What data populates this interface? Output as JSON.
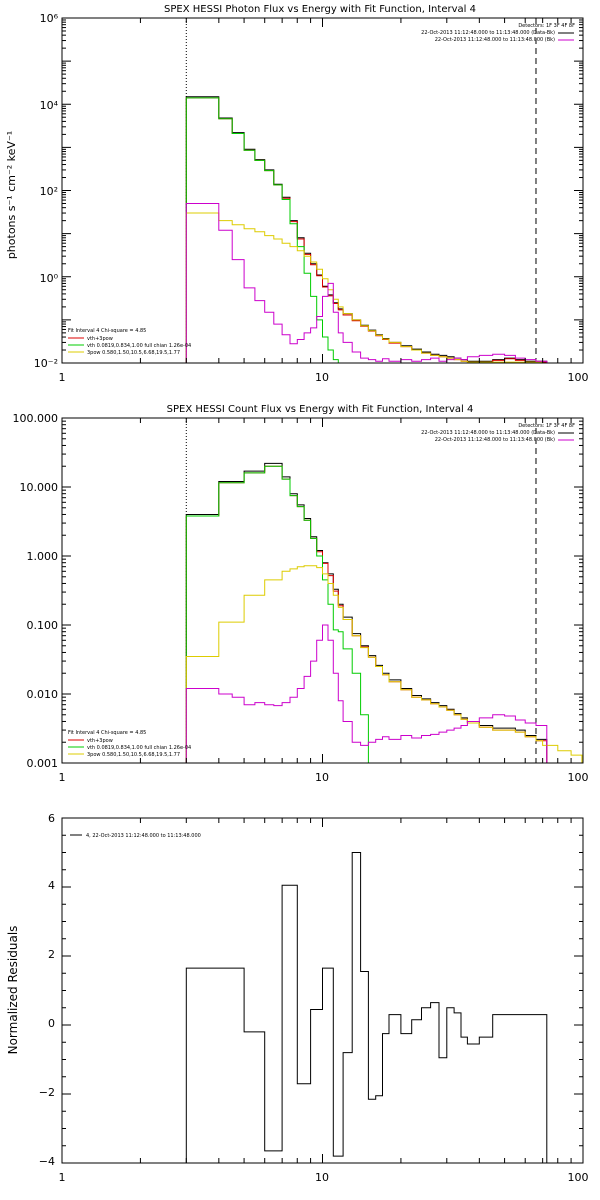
{
  "chart_data": [
    {
      "type": "line",
      "title": "SPEX HESSI Photon Flux vs Energy with Fit Function, Interval 4",
      "ylabel": "photons s⁻¹ cm⁻² keV⁻¹",
      "xlabel": "",
      "xscale": "log",
      "yscale": "log",
      "xlim": [
        1,
        100
      ],
      "ylim": [
        0.01,
        1000000
      ],
      "xticks": [
        1,
        10,
        100
      ],
      "xtick_labels": [
        "1",
        "10",
        "100"
      ],
      "yticks": [
        0.01,
        1,
        100,
        10000,
        1000000
      ],
      "ytick_labels": [
        "10⁻²",
        "10⁰",
        "10²",
        "10⁴",
        "10⁶"
      ],
      "vlines": [
        {
          "x": 3.0,
          "style": "dotted"
        },
        {
          "x": 66.0,
          "style": "dashed"
        }
      ],
      "legend_header": "Detectors: 1F 3F 4F 8F",
      "legend": [
        {
          "label": "22-Oct-2013 11:12:48.000 to 11:13:48.000 (Data-Bk)",
          "color": "#000000"
        },
        {
          "label": "22-Oct-2013 11:12:48.000 to 11:13:48.000 (Bk)",
          "color": "#cc00cc"
        }
      ],
      "fit_info": [
        {
          "label": "Fit Interval 4    Chi-square = 4.85",
          "color": "#000000"
        },
        {
          "label": "vth+3pow",
          "color": "#dd0000"
        },
        {
          "label": "vth 0.0819,0.834,1.00  full chian 1.26e-04",
          "color": "#00cc00"
        },
        {
          "label": "3pow 0.580,1.50,10.5,6.68,19.5,1.77",
          "color": "#ddcc00"
        }
      ],
      "series": [
        {
          "color": "#000000",
          "x": [
            3,
            3.5,
            4,
            4.5,
            5,
            5.5,
            6,
            6.5,
            7,
            7.5,
            8,
            8.5,
            9,
            9.5,
            10,
            10.5,
            11,
            11.5,
            12,
            13,
            14,
            15,
            16,
            17,
            18,
            20,
            22,
            24,
            26,
            28,
            30,
            32,
            34,
            36,
            40,
            45,
            50,
            55,
            60,
            66
          ],
          "y": [
            15000,
            15000,
            4800,
            2200,
            900,
            520,
            300,
            140,
            70,
            20,
            8,
            3.5,
            2,
            1.1,
            0.6,
            0.38,
            0.25,
            0.18,
            0.14,
            0.1,
            0.075,
            0.058,
            0.045,
            0.037,
            0.03,
            0.025,
            0.021,
            0.018,
            0.016,
            0.015,
            0.014,
            0.013,
            0.012,
            0.011,
            0.011,
            0.012,
            0.013,
            0.012,
            0.011,
            0.011
          ]
        },
        {
          "color": "#dd0000",
          "x": [
            3,
            3.5,
            4,
            4.5,
            5,
            5.5,
            6,
            6.5,
            7,
            7.5,
            8,
            8.5,
            9,
            9.5,
            10,
            10.5,
            11,
            11.5,
            12,
            13,
            14,
            15,
            16,
            17,
            18,
            20,
            22,
            24,
            26,
            28,
            30,
            32,
            34,
            36,
            40,
            45,
            50,
            55,
            60,
            66
          ],
          "y": [
            14000,
            14000,
            4600,
            2100,
            860,
            500,
            290,
            135,
            66,
            19,
            7.5,
            3.3,
            1.9,
            1.05,
            0.58,
            0.36,
            0.24,
            0.17,
            0.13,
            0.095,
            0.071,
            0.055,
            0.043,
            0.035,
            0.029,
            0.024,
            0.02,
            0.017,
            0.015,
            0.014,
            0.013,
            0.012,
            0.011,
            0.0105,
            0.0105,
            0.0115,
            0.0125,
            0.0115,
            0.0105,
            0.0105
          ]
        },
        {
          "color": "#00cc00",
          "x": [
            3,
            3.5,
            4,
            4.5,
            5,
            5.5,
            6,
            6.5,
            7,
            7.5,
            8,
            8.5,
            9,
            9.5,
            10,
            10.5,
            11,
            11.5,
            12,
            13,
            14,
            15,
            16
          ],
          "y": [
            14000,
            14000,
            4600,
            2100,
            860,
            500,
            290,
            135,
            62,
            17,
            5,
            1.2,
            0.35,
            0.1,
            0.04,
            0.02,
            0.012,
            0.01,
            0.01,
            0.01,
            0.01,
            0.01,
            0.01
          ]
        },
        {
          "color": "#ddcc00",
          "x": [
            3,
            3.5,
            4,
            4.5,
            5,
            5.5,
            6,
            6.5,
            7,
            7.5,
            8,
            8.5,
            9,
            9.5,
            10,
            10.5,
            11,
            11.5,
            12,
            13,
            14,
            15,
            16,
            17,
            18,
            20,
            22,
            24,
            26,
            28,
            30,
            32,
            34,
            36,
            40,
            45,
            50,
            55,
            60,
            66,
            70,
            80
          ],
          "y": [
            30,
            30,
            20,
            16,
            13,
            11,
            9,
            7.5,
            6,
            5,
            4,
            3,
            2.2,
            1.5,
            0.9,
            0.5,
            0.3,
            0.2,
            0.14,
            0.1,
            0.073,
            0.056,
            0.044,
            0.036,
            0.03,
            0.024,
            0.02,
            0.017,
            0.015,
            0.014,
            0.013,
            0.012,
            0.011,
            0.0105,
            0.0105,
            0.0105,
            0.0105,
            0.0105,
            0.0105,
            0.0105,
            0.01,
            0.01
          ]
        },
        {
          "color": "#cc00cc",
          "x": [
            3,
            3.5,
            4,
            4.5,
            5,
            5.5,
            6,
            6.5,
            7,
            7.5,
            8,
            8.5,
            9,
            9.5,
            10,
            10.5,
            11,
            11.5,
            12,
            13,
            14,
            15,
            16,
            17,
            18,
            20,
            22,
            24,
            26,
            28,
            30,
            32,
            34,
            36,
            40,
            45,
            50,
            55,
            60,
            66
          ],
          "y": [
            50,
            50,
            12,
            2.5,
            0.55,
            0.28,
            0.15,
            0.08,
            0.045,
            0.028,
            0.035,
            0.05,
            0.065,
            0.12,
            0.35,
            0.7,
            0.15,
            0.05,
            0.03,
            0.018,
            0.013,
            0.012,
            0.011,
            0.0125,
            0.011,
            0.012,
            0.011,
            0.012,
            0.013,
            0.011,
            0.012,
            0.013,
            0.012,
            0.014,
            0.015,
            0.016,
            0.015,
            0.013,
            0.012,
            0.011
          ]
        }
      ]
    },
    {
      "type": "line",
      "title": "SPEX HESSI Count Flux vs Energy with Fit Function, Interval 4",
      "xlabel": "",
      "ylabel": "",
      "xscale": "log",
      "yscale": "log",
      "xlim": [
        1,
        100
      ],
      "ylim": [
        0.001,
        100
      ],
      "xticks": [
        1,
        10,
        100
      ],
      "xtick_labels": [
        "1",
        "10",
        "100"
      ],
      "yticks": [
        0.001,
        0.01,
        0.1,
        1,
        10,
        100
      ],
      "ytick_labels": [
        "0.001",
        "0.010",
        "0.100",
        "1.000",
        "10.000",
        "100.000"
      ],
      "vlines": [
        {
          "x": 3.0,
          "style": "dotted"
        },
        {
          "x": 66.0,
          "style": "dashed"
        }
      ],
      "legend_header": "Detectors: 1F 3F 4F 8F",
      "legend": [
        {
          "label": "22-Oct-2013 11:12:48.000 to 11:13:48.000 (Data-Bk)",
          "color": "#000000"
        },
        {
          "label": "22-Oct-2013 11:12:48.000 to 11:13:48.000 (Bk)",
          "color": "#cc00cc"
        }
      ],
      "fit_info": [
        {
          "label": "Fit Interval 4    Chi-square = 4.85",
          "color": "#000000"
        },
        {
          "label": "vth+3pow",
          "color": "#dd0000"
        },
        {
          "label": "vth 0.0819,0.834,1.00  full chian 1.26e-04",
          "color": "#00cc00"
        },
        {
          "label": "3pow 0.580,1.50,10.5,6.68,19.5,1.77",
          "color": "#ddcc00"
        }
      ],
      "series": [
        {
          "color": "#000000",
          "x": [
            3,
            3.5,
            4,
            4.5,
            5,
            5.5,
            6,
            6.5,
            7,
            7.5,
            8,
            8.5,
            9,
            9.5,
            10,
            10.5,
            11,
            11.5,
            12,
            13,
            14,
            15,
            16,
            17,
            18,
            20,
            22,
            24,
            26,
            28,
            30,
            32,
            34,
            36,
            40,
            45,
            50,
            55,
            60,
            66
          ],
          "y": [
            4,
            4,
            12,
            12,
            17,
            17,
            22,
            22,
            14,
            8,
            5.5,
            3.5,
            1.9,
            1.2,
            0.8,
            0.55,
            0.33,
            0.2,
            0.13,
            0.075,
            0.05,
            0.036,
            0.026,
            0.02,
            0.016,
            0.012,
            0.0095,
            0.0085,
            0.0075,
            0.0068,
            0.006,
            0.0052,
            0.0045,
            0.004,
            0.0035,
            0.0032,
            0.0032,
            0.003,
            0.0025,
            0.0022
          ]
        },
        {
          "color": "#dd0000",
          "x": [
            3,
            3.5,
            4,
            4.5,
            5,
            5.5,
            6,
            6.5,
            7,
            7.5,
            8,
            8.5,
            9,
            9.5,
            10,
            10.5,
            11,
            11.5,
            12,
            13,
            14,
            15,
            16,
            17,
            18,
            20,
            22,
            24,
            26,
            28,
            30,
            32,
            34,
            36,
            40,
            45,
            50,
            55,
            60,
            66
          ],
          "y": [
            3.8,
            3.8,
            11.5,
            11.5,
            16,
            16,
            20,
            20,
            13,
            7.5,
            5.2,
            3.3,
            1.8,
            1.15,
            0.78,
            0.52,
            0.31,
            0.19,
            0.12,
            0.07,
            0.048,
            0.034,
            0.025,
            0.019,
            0.015,
            0.0115,
            0.009,
            0.0082,
            0.0072,
            0.0065,
            0.0058,
            0.005,
            0.0043,
            0.0038,
            0.0033,
            0.003,
            0.003,
            0.0028,
            0.0024,
            0.0021
          ]
        },
        {
          "color": "#00cc00",
          "x": [
            3,
            3.5,
            4,
            4.5,
            5,
            5.5,
            6,
            6.5,
            7,
            7.5,
            8,
            8.5,
            9,
            9.5,
            10,
            10.5,
            11,
            11.5,
            12,
            13,
            14,
            15
          ],
          "y": [
            3.8,
            3.8,
            11.5,
            11.5,
            16,
            16,
            20,
            20,
            13,
            7.5,
            5.2,
            3.3,
            1.8,
            1.0,
            0.45,
            0.2,
            0.085,
            0.08,
            0.045,
            0.02,
            0.005,
            0.001
          ]
        },
        {
          "color": "#ddcc00",
          "x": [
            3,
            3.5,
            4,
            4.5,
            5,
            5.5,
            6,
            6.5,
            7,
            7.5,
            8,
            8.5,
            9,
            9.5,
            10,
            10.5,
            11,
            11.5,
            12,
            13,
            14,
            15,
            16,
            17,
            18,
            20,
            22,
            24,
            26,
            28,
            30,
            32,
            34,
            36,
            40,
            45,
            50,
            55,
            60,
            66,
            70,
            80,
            90
          ],
          "y": [
            0.035,
            0.035,
            0.11,
            0.11,
            0.27,
            0.27,
            0.45,
            0.45,
            0.6,
            0.65,
            0.7,
            0.72,
            0.72,
            0.68,
            0.55,
            0.4,
            0.27,
            0.18,
            0.12,
            0.07,
            0.047,
            0.034,
            0.025,
            0.019,
            0.015,
            0.0115,
            0.009,
            0.0082,
            0.0072,
            0.0065,
            0.0058,
            0.005,
            0.0043,
            0.0038,
            0.0033,
            0.003,
            0.003,
            0.0028,
            0.0024,
            0.0021,
            0.0018,
            0.0015,
            0.0013
          ]
        },
        {
          "color": "#cc00cc",
          "x": [
            3,
            3.5,
            4,
            4.5,
            5,
            5.5,
            6,
            6.5,
            7,
            7.5,
            8,
            8.5,
            9,
            9.5,
            10,
            10.5,
            11,
            11.5,
            12,
            13,
            14,
            15,
            16,
            17,
            18,
            20,
            22,
            24,
            26,
            28,
            30,
            32,
            34,
            36,
            40,
            45,
            50,
            55,
            60,
            66
          ],
          "y": [
            0.012,
            0.012,
            0.01,
            0.009,
            0.007,
            0.0075,
            0.007,
            0.0068,
            0.0075,
            0.009,
            0.012,
            0.018,
            0.03,
            0.06,
            0.1,
            0.06,
            0.02,
            0.008,
            0.004,
            0.002,
            0.0018,
            0.002,
            0.0022,
            0.0024,
            0.0022,
            0.0025,
            0.0023,
            0.0025,
            0.0026,
            0.0028,
            0.003,
            0.0032,
            0.0035,
            0.004,
            0.0045,
            0.005,
            0.0048,
            0.0042,
            0.0038,
            0.0035
          ]
        }
      ]
    },
    {
      "type": "line",
      "title": "",
      "xlabel": "",
      "ylabel": "Normalized Residuals",
      "xscale": "log",
      "yscale": "linear",
      "xlim": [
        1,
        100
      ],
      "ylim": [
        -4,
        6
      ],
      "xticks": [
        1,
        10,
        100
      ],
      "xtick_labels": [
        "1",
        "10",
        "100"
      ],
      "yticks": [
        -4,
        -2,
        0,
        2,
        4,
        6
      ],
      "ytick_labels": [
        "−4",
        "−2",
        "0",
        "2",
        "4",
        "6"
      ],
      "legend": [
        {
          "label": "4, 22-Oct-2013 11:12:48.000 to 11:13:48.000",
          "color": "#000000"
        }
      ],
      "series": [
        {
          "color": "#000000",
          "x": [
            3,
            4,
            5,
            6,
            7,
            8,
            9,
            10,
            11,
            12,
            13,
            14,
            15,
            16,
            17,
            18,
            20,
            22,
            24,
            26,
            28,
            30,
            32,
            34,
            36,
            40,
            45,
            50,
            55,
            60,
            66
          ],
          "y": [
            1.65,
            1.65,
            -0.2,
            -3.65,
            4.05,
            -1.7,
            0.45,
            1.65,
            -3.8,
            -0.8,
            5.0,
            1.55,
            -2.15,
            -2.05,
            -0.25,
            0.3,
            -0.25,
            0.15,
            0.5,
            0.65,
            -0.95,
            0.5,
            0.35,
            -0.35,
            -0.55,
            -0.35,
            0.3,
            0.3,
            0.3,
            0.3,
            0.3
          ]
        }
      ]
    }
  ]
}
